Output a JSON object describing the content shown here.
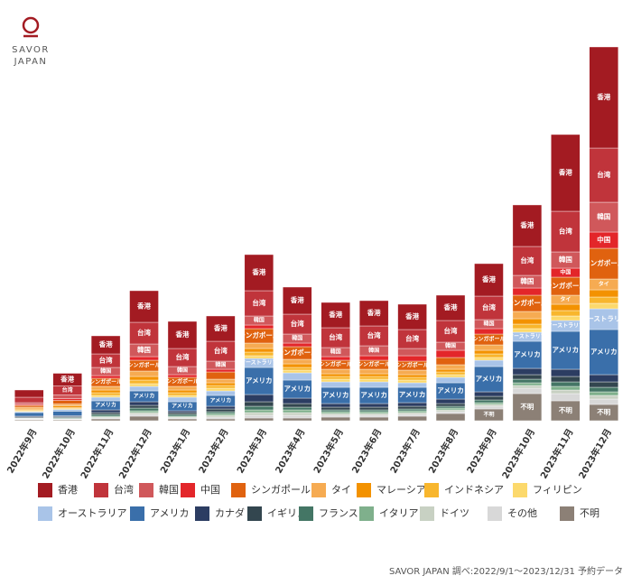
{
  "chart_data": {
    "type": "stacked_bar",
    "logo": [
      "SAVOR",
      "JAPAN"
    ],
    "source": "SAVOR JAPAN 調べ:2022/9/1〜2023/12/31 予約データ",
    "categories": [
      "2022年9月",
      "2022年10月",
      "2022年11月",
      "2022年12月",
      "2023年1月",
      "2023年2月",
      "2023年3月",
      "2023年4月",
      "2023年5月",
      "2023年6月",
      "2023年7月",
      "2023年8月",
      "2023年9月",
      "2023年10月",
      "2023年11月",
      "2023年12月"
    ],
    "ylim": [
      0,
      420
    ],
    "series": [
      {
        "name": "香港",
        "color": "#a31b22",
        "values": [
          8,
          14,
          20,
          35,
          30,
          28,
          40,
          30,
          28,
          28,
          28,
          28,
          36,
          46,
          85,
          112
        ]
      },
      {
        "name": "台湾",
        "color": "#c0343b",
        "values": [
          6,
          10,
          15,
          24,
          20,
          22,
          28,
          22,
          22,
          22,
          21,
          24,
          26,
          32,
          45,
          60
        ]
      },
      {
        "name": "韓国",
        "color": "#d0585b",
        "values": [
          2,
          4,
          9,
          14,
          9,
          9,
          10,
          10,
          10,
          11,
          8,
          9,
          10,
          14,
          18,
          33
        ]
      },
      {
        "name": "中国",
        "color": "#e3262a",
        "values": [
          1,
          2,
          3,
          4,
          3,
          3,
          4,
          4,
          4,
          5,
          6,
          8,
          6,
          8,
          10,
          18
        ]
      },
      {
        "name": "シンガポール",
        "color": "#e0620f",
        "values": [
          2,
          4,
          9,
          12,
          10,
          8,
          16,
          14,
          10,
          10,
          10,
          8,
          12,
          18,
          20,
          34
        ]
      },
      {
        "name": "タイ",
        "color": "#f6ab52",
        "values": [
          2,
          2,
          4,
          6,
          4,
          4,
          6,
          5,
          5,
          5,
          5,
          5,
          6,
          8,
          10,
          12
        ]
      },
      {
        "name": "マレーシア",
        "color": "#f39200",
        "values": [
          1,
          2,
          3,
          4,
          3,
          3,
          4,
          4,
          3,
          3,
          3,
          3,
          4,
          6,
          7,
          8
        ]
      },
      {
        "name": "インドネシア",
        "color": "#f8b62d",
        "values": [
          1,
          1,
          3,
          4,
          3,
          3,
          4,
          3,
          3,
          3,
          3,
          3,
          4,
          5,
          6,
          7
        ]
      },
      {
        "name": "フィリピン",
        "color": "#fcd96c",
        "values": [
          1,
          1,
          2,
          3,
          2,
          3,
          3,
          3,
          3,
          3,
          3,
          3,
          3,
          4,
          5,
          6
        ]
      },
      {
        "name": "オーストラリア",
        "color": "#a9c4e8",
        "values": [
          1,
          2,
          4,
          5,
          5,
          5,
          10,
          8,
          6,
          6,
          5,
          6,
          7,
          10,
          12,
          23
        ]
      },
      {
        "name": "アメリカ",
        "color": "#3a6faa",
        "values": [
          4,
          5,
          10,
          12,
          10,
          12,
          30,
          20,
          18,
          18,
          17,
          18,
          28,
          30,
          42,
          50
        ]
      },
      {
        "name": "カナダ",
        "color": "#2c3d62",
        "values": [
          1,
          1,
          3,
          4,
          2,
          3,
          8,
          6,
          4,
          4,
          4,
          5,
          5,
          7,
          8,
          8
        ]
      },
      {
        "name": "イギリス",
        "color": "#33464f",
        "values": [
          1,
          1,
          2,
          3,
          2,
          3,
          5,
          4,
          3,
          3,
          3,
          3,
          4,
          5,
          6,
          6
        ]
      },
      {
        "name": "フランス",
        "color": "#447665",
        "values": [
          0.5,
          1,
          2,
          3,
          2,
          2,
          4,
          3,
          2,
          2,
          2,
          2,
          3,
          4,
          5,
          5
        ]
      },
      {
        "name": "イタリア",
        "color": "#7fb08c",
        "values": [
          0.5,
          0.5,
          1,
          2,
          1,
          2,
          3,
          3,
          2,
          2,
          2,
          2,
          2,
          3,
          4,
          4
        ]
      },
      {
        "name": "ドイツ",
        "color": "#c8d1c3",
        "values": [
          0.5,
          0.5,
          1,
          2,
          1,
          2,
          3,
          3,
          2,
          2,
          2,
          2,
          2,
          3,
          4,
          4
        ]
      },
      {
        "name": "その他",
        "color": "#d8d8d8",
        "values": [
          0.5,
          0.5,
          1,
          2,
          1,
          2,
          3,
          3,
          2,
          2,
          2,
          2,
          3,
          6,
          8,
          6
        ]
      },
      {
        "name": "不明",
        "color": "#8c8076",
        "values": [
          1,
          1,
          2,
          5,
          2,
          2,
          3,
          3,
          4,
          4,
          5,
          8,
          13,
          30,
          22,
          18
        ]
      }
    ]
  }
}
